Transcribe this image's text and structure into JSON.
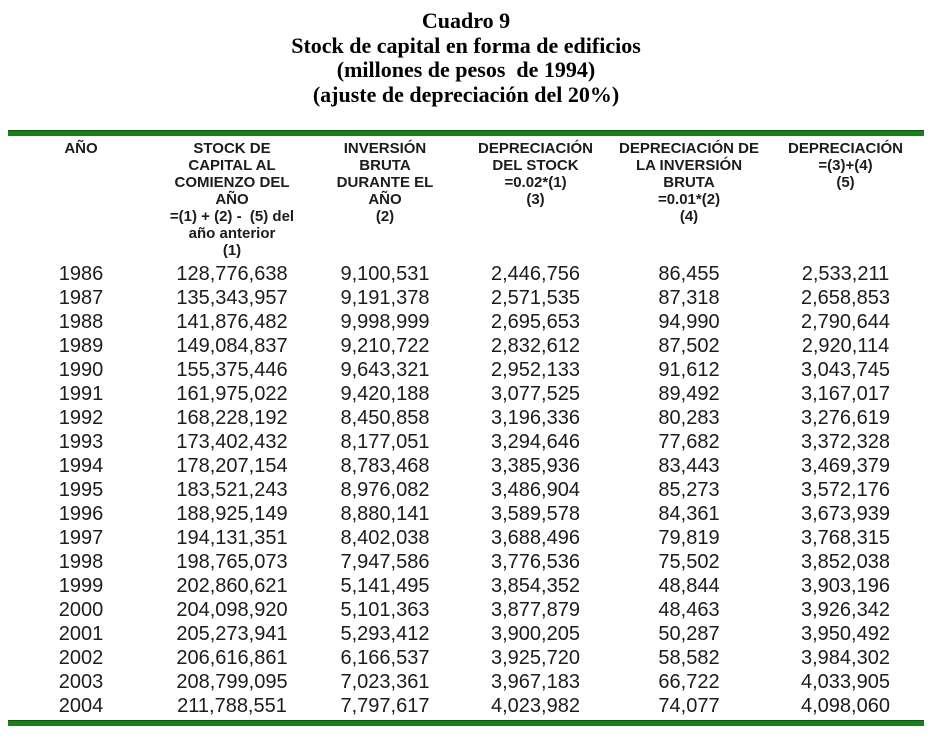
{
  "title": {
    "line1": "Cuadro 9",
    "line2": "Stock de capital en forma de edificios",
    "line3": "(millones de pesos  de 1994)",
    "line4": "(ajuste de depreciación del 20%)"
  },
  "table": {
    "rule_color": "#168016",
    "columns": [
      {
        "id": "ano",
        "header_lines": [
          "AÑO"
        ]
      },
      {
        "id": "stock-capital",
        "header_lines": [
          "STOCK DE",
          "CAPITAL AL",
          "COMIENZO DEL",
          "AÑO",
          "=(1) + (2) -  (5) del",
          "año anterior",
          "(1)"
        ]
      },
      {
        "id": "inversion-bruta",
        "header_lines": [
          "INVERSIÓN",
          "BRUTA",
          "DURANTE EL",
          "AÑO",
          "(2)"
        ]
      },
      {
        "id": "depreciacion-stock",
        "header_lines": [
          "DEPRECIACIÓN",
          "DEL STOCK",
          "=0.02*(1)",
          "(3)"
        ]
      },
      {
        "id": "depreciacion-inversion",
        "header_lines": [
          "DEPRECIACIÓN DE",
          "LA INVERSIÓN",
          "BRUTA",
          "=0.01*(2)",
          "(4)"
        ]
      },
      {
        "id": "depreciacion-total",
        "header_lines": [
          "DEPRECIACIÓN",
          "=(3)+(4)",
          "(5)"
        ]
      }
    ],
    "rows": [
      [
        "1986",
        "128,776,638",
        "9,100,531",
        "2,446,756",
        "86,455",
        "2,533,211"
      ],
      [
        "1987",
        "135,343,957",
        "9,191,378",
        "2,571,535",
        "87,318",
        "2,658,853"
      ],
      [
        "1988",
        "141,876,482",
        "9,998,999",
        "2,695,653",
        "94,990",
        "2,790,644"
      ],
      [
        "1989",
        "149,084,837",
        "9,210,722",
        "2,832,612",
        "87,502",
        "2,920,114"
      ],
      [
        "1990",
        "155,375,446",
        "9,643,321",
        "2,952,133",
        "91,612",
        "3,043,745"
      ],
      [
        "1991",
        "161,975,022",
        "9,420,188",
        "3,077,525",
        "89,492",
        "3,167,017"
      ],
      [
        "1992",
        "168,228,192",
        "8,450,858",
        "3,196,336",
        "80,283",
        "3,276,619"
      ],
      [
        "1993",
        "173,402,432",
        "8,177,051",
        "3,294,646",
        "77,682",
        "3,372,328"
      ],
      [
        "1994",
        "178,207,154",
        "8,783,468",
        "3,385,936",
        "83,443",
        "3,469,379"
      ],
      [
        "1995",
        "183,521,243",
        "8,976,082",
        "3,486,904",
        "85,273",
        "3,572,176"
      ],
      [
        "1996",
        "188,925,149",
        "8,880,141",
        "3,589,578",
        "84,361",
        "3,673,939"
      ],
      [
        "1997",
        "194,131,351",
        "8,402,038",
        "3,688,496",
        "79,819",
        "3,768,315"
      ],
      [
        "1998",
        "198,765,073",
        "7,947,586",
        "3,776,536",
        "75,502",
        "3,852,038"
      ],
      [
        "1999",
        "202,860,621",
        "5,141,495",
        "3,854,352",
        "48,844",
        "3,903,196"
      ],
      [
        "2000",
        "204,098,920",
        "5,101,363",
        "3,877,879",
        "48,463",
        "3,926,342"
      ],
      [
        "2001",
        "205,273,941",
        "5,293,412",
        "3,900,205",
        "50,287",
        "3,950,492"
      ],
      [
        "2002",
        "206,616,861",
        "6,166,537",
        "3,925,720",
        "58,582",
        "3,984,302"
      ],
      [
        "2003",
        "208,799,095",
        "7,023,361",
        "3,967,183",
        "66,722",
        "4,033,905"
      ],
      [
        "2004",
        "211,788,551",
        "7,797,617",
        "4,023,982",
        "74,077",
        "4,098,060"
      ]
    ]
  }
}
